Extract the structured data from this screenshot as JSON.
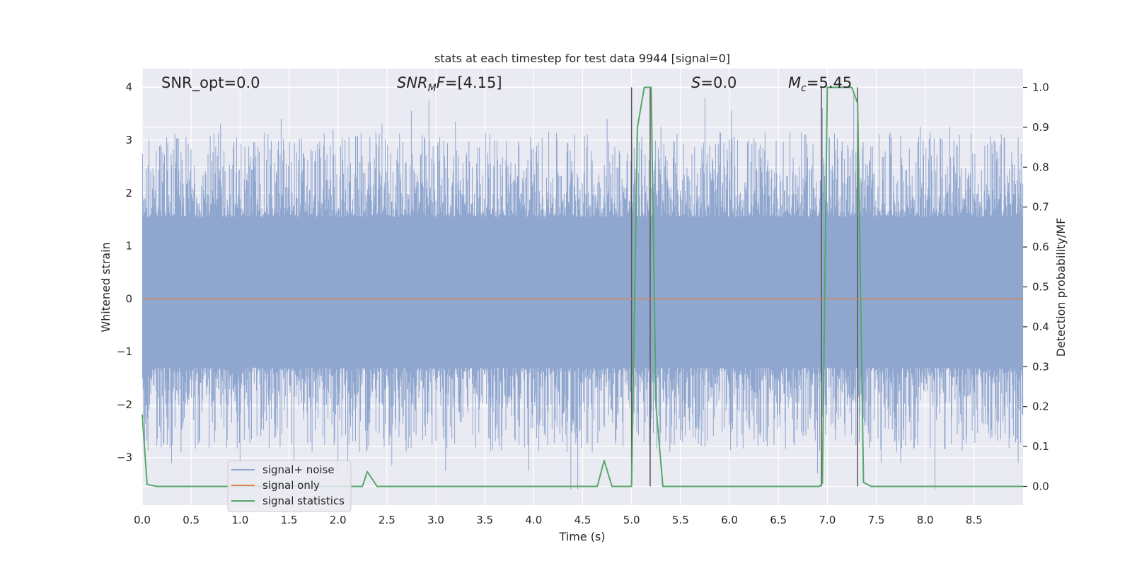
{
  "chart_data": {
    "type": "line",
    "title": "stats at each timestep for test data 9944 [signal=0]",
    "xlabel": "Time (s)",
    "ylabel": "Whitened strain",
    "y2label": "Detection probability/MF",
    "xlim": [
      0.0,
      9.0
    ],
    "ylim": [
      -3.9,
      4.35
    ],
    "y2lim": [
      -0.047,
      1.047
    ],
    "x_ticks": [
      "0.0",
      "0.5",
      "1.0",
      "1.5",
      "2.0",
      "2.5",
      "3.0",
      "3.5",
      "4.0",
      "4.5",
      "5.0",
      "5.5",
      "6.0",
      "6.5",
      "7.0",
      "7.5",
      "8.0",
      "8.5"
    ],
    "y_ticks": [
      "4",
      "3",
      "2",
      "1",
      "0",
      "−1",
      "−2",
      "−3"
    ],
    "y2_ticks": [
      "1.0",
      "0.9",
      "0.8",
      "0.7",
      "0.6",
      "0.5",
      "0.4",
      "0.3",
      "0.2",
      "0.1",
      "0.0"
    ],
    "grid": true,
    "legend_position": "lower-left",
    "annotations": {
      "snr_opt": "SNR_opt=0.0",
      "snr_mf": "[4.15]",
      "s_value": "0.0",
      "mc_value": "5.45"
    },
    "series": [
      {
        "name": "signal+ noise",
        "color": "#8fa6cf",
        "kind": "noise-band",
        "band_core": [
          -1.3,
          1.55
        ],
        "peak_x": [
          0.25,
          0.8,
          1.42,
          1.95,
          2.45,
          2.75,
          2.93,
          3.2,
          3.6,
          4.35,
          4.42,
          4.75,
          5.3,
          5.75,
          6.02,
          6.95,
          7.27,
          7.95,
          8.25,
          8.95
        ],
        "peak_y": [
          3.05,
          3.3,
          3.4,
          3.2,
          3.3,
          3.55,
          3.75,
          3.35,
          3.0,
          2.95,
          3.1,
          3.4,
          3.25,
          3.8,
          3.55,
          3.6,
          3.85,
          3.25,
          3.25,
          3.05
        ],
        "trough_x": [
          0.3,
          1.0,
          1.55,
          2.0,
          2.1,
          2.55,
          3.1,
          3.95,
          4.38,
          4.45,
          5.35,
          5.75,
          6.9,
          7.55,
          7.75,
          8.1,
          8.95
        ],
        "trough_y": [
          -3.1,
          -3.2,
          -3.05,
          -3.3,
          -3.35,
          -3.15,
          -3.25,
          -3.25,
          -3.6,
          -3.6,
          -2.7,
          -2.8,
          -3.3,
          -3.1,
          -3.1,
          -3.6,
          -3.1
        ]
      },
      {
        "name": "signal only",
        "color": "#dd8452",
        "axis": "left",
        "x": [
          0.0,
          9.0
        ],
        "y": [
          0.0,
          0.0
        ]
      },
      {
        "name": "signal statistics",
        "color": "#55a868",
        "axis": "right",
        "x": [
          0.0,
          0.05,
          0.15,
          2.25,
          2.3,
          2.4,
          4.65,
          4.72,
          4.8,
          5.0,
          5.06,
          5.13,
          5.2,
          5.25,
          5.32,
          6.92,
          6.95,
          7.0,
          7.25,
          7.31,
          7.37,
          7.45,
          9.0
        ],
        "y": [
          0.18,
          0.005,
          0.0,
          0.0,
          0.037,
          0.0,
          0.0,
          0.065,
          0.0,
          0.0,
          0.9,
          1.0,
          1.0,
          0.2,
          0.0,
          0.0,
          0.008,
          1.0,
          1.0,
          0.96,
          0.01,
          0.0,
          0.0
        ]
      }
    ],
    "vertical_markers_x": [
      5.0,
      5.19,
      6.94,
      7.31
    ]
  }
}
